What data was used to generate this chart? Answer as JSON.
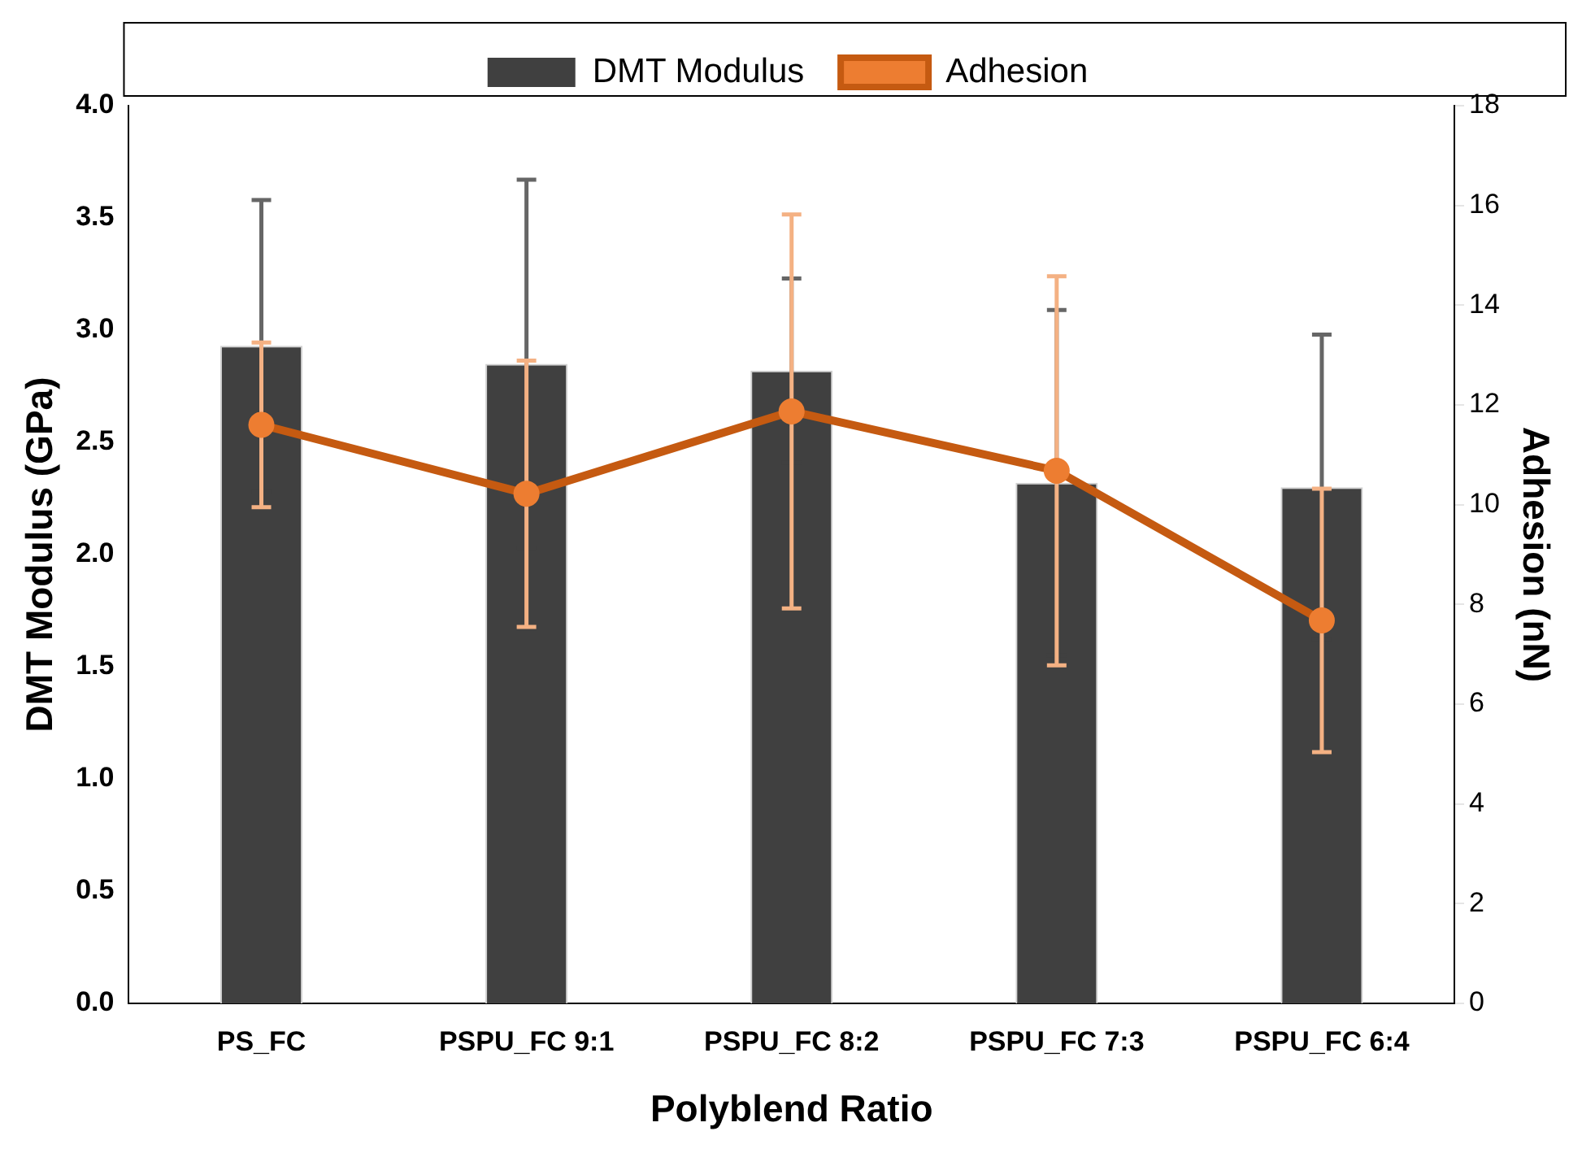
{
  "chart_data": {
    "type": "bar",
    "xlabel": "Polyblend Ratio",
    "ylabel": "DMT Modulus (GPa)",
    "y2label": "Adhesion (nN)",
    "categories": [
      "PS_FC",
      "PSPU_FC 9:1",
      "PSPU_FC 8:2",
      "PSPU_FC 7:3",
      "PSPU_FC 6:4"
    ],
    "series": [
      {
        "name": "DMT Modulus",
        "color": "#404040",
        "values": [
          2.93,
          2.85,
          2.82,
          2.32,
          2.3
        ],
        "errors": [
          0.65,
          0.82,
          0.41,
          0.77,
          0.68
        ]
      },
      {
        "name": "Adhesion",
        "type": "line",
        "axis": "y2",
        "color": "#c55a11",
        "values": [
          11.6,
          10.22,
          11.87,
          10.68,
          7.68
        ],
        "errors": [
          1.65,
          2.67,
          3.95,
          3.9,
          2.64
        ]
      }
    ],
    "ylim": [
      0,
      4
    ],
    "yticks": [
      {
        "value": 0,
        "label": "0.0"
      },
      {
        "value": 0.5,
        "label": "0.5"
      },
      {
        "value": 1,
        "label": "1.0"
      },
      {
        "value": 1.5,
        "label": "1.5"
      },
      {
        "value": 2,
        "label": "2.0"
      },
      {
        "value": 2.5,
        "label": "2.5"
      },
      {
        "value": 3,
        "label": "3.0"
      },
      {
        "value": 3.5,
        "label": "3.5"
      },
      {
        "value": 4,
        "label": "4.0"
      }
    ],
    "y2lim": [
      0,
      18
    ],
    "y2ticks": [
      0,
      2,
      4,
      6,
      8,
      10,
      12,
      14,
      16,
      18
    ],
    "grid": false,
    "legend": "top",
    "marker": "circle",
    "line_style": "solid"
  }
}
